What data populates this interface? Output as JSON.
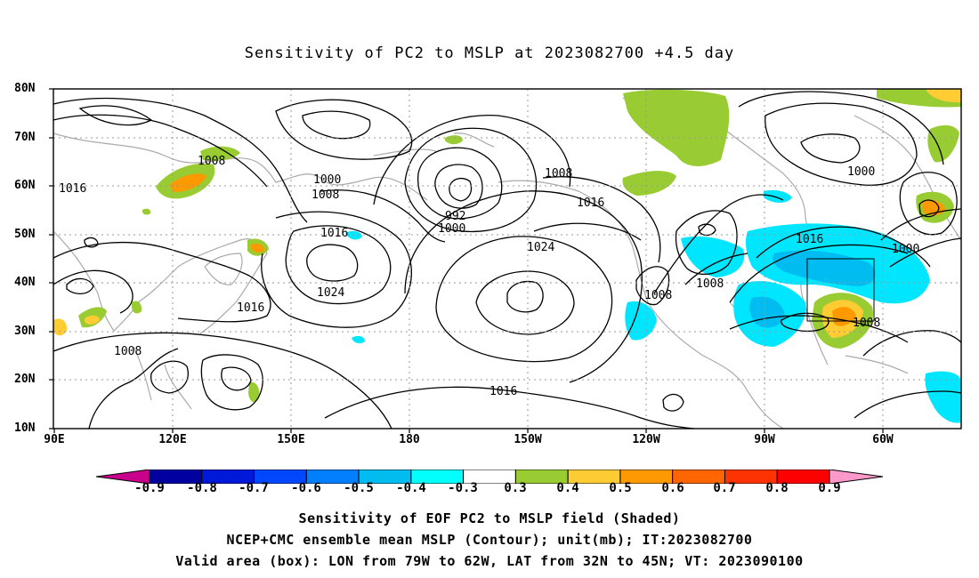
{
  "title": "Sensitivity of PC2 to MSLP at 2023082700 +4.5 day",
  "lat_labels": [
    "80N",
    "70N",
    "60N",
    "50N",
    "40N",
    "30N",
    "20N",
    "10N"
  ],
  "lon_labels": [
    "90E",
    "120E",
    "150E",
    "180",
    "150W",
    "120W",
    "90W",
    "60W"
  ],
  "contour_labels": [
    "1008",
    "1016",
    "1000",
    "1008",
    "1016",
    "1024",
    "1016",
    "1008",
    "992",
    "1000",
    "1008",
    "1016",
    "1024",
    "1008",
    "1008",
    "1016",
    "1016",
    "1000",
    "1000",
    "1008"
  ],
  "colorbar": {
    "labels": [
      "-0.9",
      "-0.8",
      "-0.7",
      "-0.6",
      "-0.5",
      "-0.4",
      "-0.3",
      "0.3",
      "0.4",
      "0.5",
      "0.6",
      "0.7",
      "0.8",
      "0.9"
    ],
    "colors": [
      "#c8008c",
      "#0000a0",
      "#0018d8",
      "#0048ff",
      "#0080ff",
      "#00bcf0",
      "#00ffff",
      "#ffffff",
      "#99cc33",
      "#ffcc33",
      "#ff9900",
      "#ff6600",
      "#ff3300",
      "#ff0000",
      "#ff99cc"
    ]
  },
  "captions": [
    "Sensitivity of EOF PC2 to MSLP field (Shaded)",
    "NCEP+CMC ensemble mean MSLP (Contour); unit(mb); IT:2023082700",
    "Valid area (box): LON from 79W to 62W, LAT from 32N to 45N; VT: 2023090100"
  ]
}
